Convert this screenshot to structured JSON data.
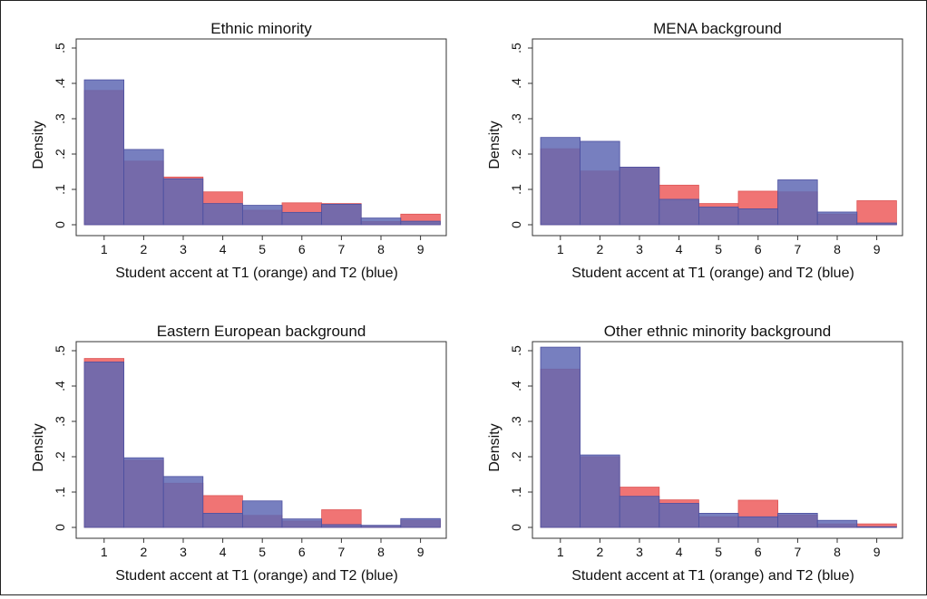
{
  "colors": {
    "t1_orange": "#ef6d6d",
    "t2_blue": "#5f68b4",
    "overlap": "#6f4aa0"
  },
  "chart_data": [
    {
      "type": "bar",
      "title": "Ethnic minority",
      "xlabel": "Student accent at T1 (orange) and T2 (blue)",
      "ylabel": "Density",
      "categories": [
        "1",
        "2",
        "3",
        "4",
        "5",
        "6",
        "7",
        "8",
        "9"
      ],
      "yticks": [
        "0",
        ".1",
        ".2",
        ".3",
        ".4",
        ".5"
      ],
      "ylim": [
        0,
        0.5
      ],
      "grid": false,
      "series": [
        {
          "values": [
            0.38,
            0.18,
            0.135,
            0.093,
            0.041,
            0.062,
            0.06,
            0.009,
            0.03
          ]
        },
        {
          "values": [
            0.41,
            0.213,
            0.13,
            0.06,
            0.055,
            0.035,
            0.058,
            0.019,
            0.01
          ]
        }
      ]
    },
    {
      "type": "bar",
      "title": "MENA background",
      "xlabel": "Student accent at T1 (orange) and T2 (blue)",
      "ylabel": "Density",
      "categories": [
        "1",
        "2",
        "3",
        "4",
        "5",
        "6",
        "7",
        "8",
        "9"
      ],
      "yticks": [
        "0",
        ".1",
        ".2",
        ".3",
        ".4",
        ".5"
      ],
      "ylim": [
        0,
        0.5
      ],
      "grid": false,
      "series": [
        {
          "values": [
            0.215,
            0.152,
            0.163,
            0.112,
            0.06,
            0.095,
            0.093,
            0.03,
            0.068
          ]
        },
        {
          "values": [
            0.247,
            0.236,
            0.163,
            0.072,
            0.05,
            0.045,
            0.127,
            0.036,
            0.005
          ]
        }
      ]
    },
    {
      "type": "bar",
      "title": "Eastern European background",
      "xlabel": "Student accent at T1 (orange) and T2 (blue)",
      "ylabel": "Density",
      "categories": [
        "1",
        "2",
        "3",
        "4",
        "5",
        "6",
        "7",
        "8",
        "9"
      ],
      "yticks": [
        "0",
        ".1",
        ".2",
        ".3",
        ".4",
        ".5"
      ],
      "ylim": [
        0,
        0.5
      ],
      "grid": false,
      "series": [
        {
          "values": [
            0.478,
            0.19,
            0.125,
            0.09,
            0.034,
            0.018,
            0.05,
            0.003,
            0.02
          ]
        },
        {
          "values": [
            0.468,
            0.197,
            0.144,
            0.04,
            0.075,
            0.024,
            0.008,
            0.006,
            0.025
          ]
        }
      ]
    },
    {
      "type": "bar",
      "title": "Other ethnic minority background",
      "xlabel": "Student accent at T1 (orange) and T2 (blue)",
      "ylabel": "Density",
      "categories": [
        "1",
        "2",
        "3",
        "4",
        "5",
        "6",
        "7",
        "8",
        "9"
      ],
      "yticks": [
        "0",
        ".1",
        ".2",
        ".3",
        ".4",
        ".5"
      ],
      "ylim": [
        0,
        0.5
      ],
      "grid": false,
      "series": [
        {
          "values": [
            0.448,
            0.2,
            0.114,
            0.078,
            0.03,
            0.077,
            0.035,
            0.01,
            0.01
          ]
        },
        {
          "values": [
            0.51,
            0.205,
            0.088,
            0.068,
            0.04,
            0.03,
            0.04,
            0.02,
            0.002
          ]
        }
      ]
    }
  ]
}
